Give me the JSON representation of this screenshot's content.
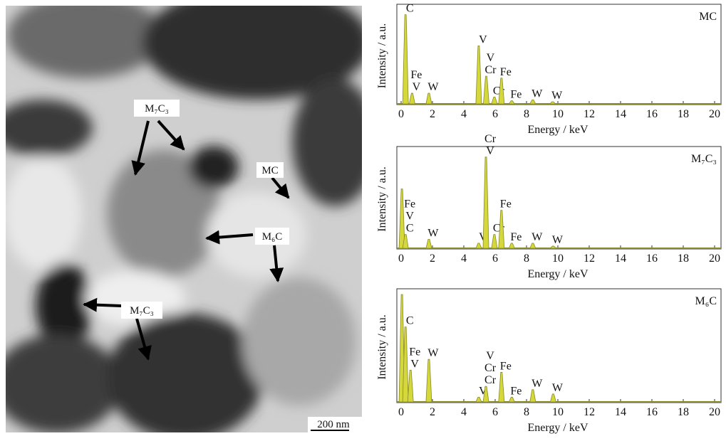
{
  "micrograph": {
    "labels": [
      "M₇C₃",
      "MC",
      "M₆C",
      "M₇C₃"
    ],
    "scale_bar": "200 nm"
  },
  "chart_data": [
    {
      "type": "spectrum",
      "title": "MC",
      "x_label": "Energy / keV",
      "y_label": "Intensity / a.u.",
      "xlim": [
        0,
        20
      ],
      "xticks": [
        0,
        2,
        4,
        6,
        8,
        10,
        12,
        14,
        16,
        18,
        20
      ],
      "ylim": [
        0,
        100
      ],
      "color": "#d4d83a",
      "x": [
        0.28,
        0.7,
        1.77,
        4.95,
        5.43,
        5.95,
        6.4,
        7.06,
        8.4,
        9.67
      ],
      "values": [
        95,
        12,
        12,
        62,
        30,
        8,
        28,
        4,
        5,
        3
      ],
      "peak_labels": [
        [
          "C"
        ],
        [
          "V",
          "Fe"
        ],
        [
          "W"
        ],
        [
          "V"
        ],
        [
          "Cr",
          "V"
        ],
        [
          "Cr"
        ],
        [
          "Fe"
        ],
        [
          "Fe"
        ],
        [
          "W"
        ],
        [
          "W"
        ]
      ]
    },
    {
      "type": "spectrum",
      "title": "M₇C₃",
      "x_label": "Energy / keV",
      "y_label": "Intensity / a.u.",
      "xlim": [
        0,
        20
      ],
      "xticks": [
        0,
        2,
        4,
        6,
        8,
        10,
        12,
        14,
        16,
        18,
        20
      ],
      "ylim": [
        0,
        100
      ],
      "color": "#d4d83a",
      "x": [
        0.05,
        0.28,
        1.77,
        4.95,
        5.41,
        5.95,
        6.4,
        7.06,
        8.4,
        9.7
      ],
      "values": [
        62,
        15,
        10,
        6,
        95,
        15,
        40,
        6,
        6,
        3
      ],
      "peak_labels": [
        [],
        [
          "C",
          "V",
          "Fe"
        ],
        [
          "W"
        ],
        [
          "V"
        ],
        [
          "V",
          "Cr"
        ],
        [
          "Cr"
        ],
        [
          "Fe"
        ],
        [
          "Fe"
        ],
        [
          "W"
        ],
        [
          "W"
        ]
      ]
    },
    {
      "type": "spectrum",
      "title": "M₆C",
      "x_label": "Energy / keV",
      "y_label": "Intensity / a.u.",
      "xlim": [
        0,
        20
      ],
      "xticks": [
        0,
        2,
        4,
        6,
        8,
        10,
        12,
        14,
        16,
        18,
        20
      ],
      "ylim": [
        0,
        100
      ],
      "color": "#d4d83a",
      "x": [
        0.05,
        0.28,
        0.6,
        1.77,
        4.95,
        5.41,
        6.4,
        7.06,
        8.4,
        9.7
      ],
      "values": [
        100,
        70,
        30,
        40,
        5,
        15,
        28,
        5,
        12,
        8
      ],
      "peak_labels": [
        [],
        [
          "C"
        ],
        [
          "V",
          "Fe"
        ],
        [
          "W"
        ],
        [
          "V"
        ],
        [
          "Cr",
          "Cr",
          "V"
        ],
        [
          "Fe"
        ],
        [
          "Fe"
        ],
        [
          "W"
        ],
        [
          "W"
        ]
      ]
    }
  ]
}
